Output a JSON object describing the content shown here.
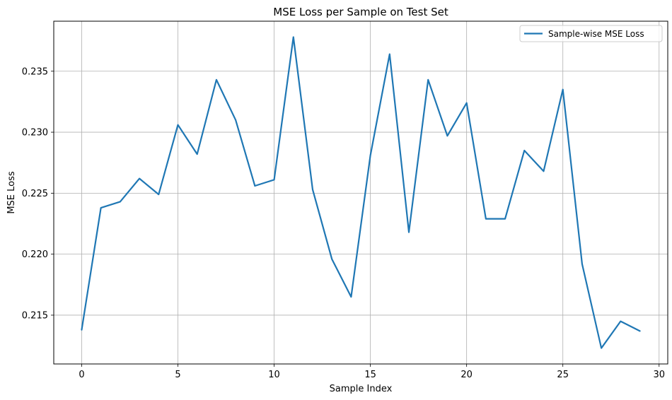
{
  "chart_data": {
    "type": "line",
    "title": "MSE Loss per Sample on Test Set",
    "xlabel": "Sample Index",
    "ylabel": "MSE Loss",
    "x": [
      0,
      1,
      2,
      3,
      4,
      5,
      6,
      7,
      8,
      9,
      10,
      11,
      12,
      13,
      14,
      15,
      16,
      17,
      18,
      19,
      20,
      21,
      22,
      23,
      24,
      25,
      26,
      27,
      28,
      29
    ],
    "series": [
      {
        "name": "Sample-wise MSE Loss",
        "color": "#1f77b4",
        "values": [
          0.2138,
          0.2238,
          0.2243,
          0.2262,
          0.2249,
          0.2306,
          0.2282,
          0.2343,
          0.231,
          0.2256,
          0.2261,
          0.2378,
          0.2253,
          0.2196,
          0.2165,
          0.2281,
          0.2364,
          0.2218,
          0.2343,
          0.2297,
          0.2324,
          0.2229,
          0.2229,
          0.2285,
          0.2268,
          0.2335,
          0.2192,
          0.2123,
          0.2145,
          0.2137
        ]
      }
    ],
    "xlim": [
      -1.45,
      30.45
    ],
    "ylim": [
      0.211,
      0.2391
    ],
    "xticks": [
      0,
      5,
      10,
      15,
      20,
      25,
      30
    ],
    "yticks": [
      0.215,
      0.22,
      0.225,
      0.23,
      0.235
    ],
    "xtick_labels": [
      "0",
      "5",
      "10",
      "15",
      "20",
      "25",
      "30"
    ],
    "ytick_labels": [
      "0.215",
      "0.220",
      "0.225",
      "0.230",
      "0.235"
    ],
    "grid": true,
    "legend_position": "top-right"
  }
}
